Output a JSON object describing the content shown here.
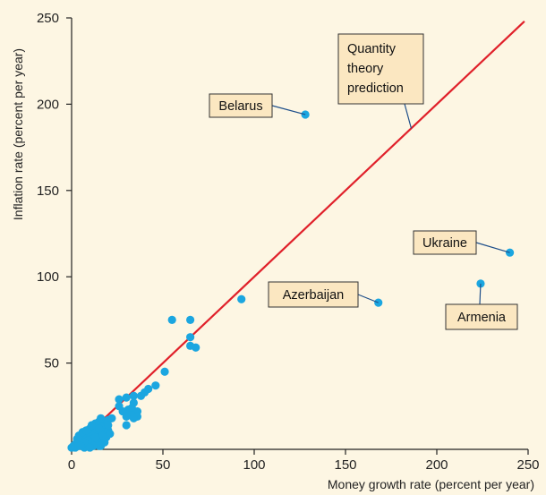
{
  "chart_data": {
    "type": "scatter",
    "title": "",
    "xlabel": "Money growth rate (percent per year)",
    "ylabel": "Inflation rate (percent per year)",
    "xlim": [
      0,
      250
    ],
    "ylim": [
      0,
      250
    ],
    "xticks": [
      0,
      50,
      100,
      150,
      200,
      250
    ],
    "yticks": [
      50,
      100,
      150,
      200,
      250
    ],
    "grid": false,
    "colors": {
      "background": "#fdf6e3",
      "points": "#1ba6e0",
      "line": "#e0202a",
      "annotation_fill": "#fbe7c1",
      "annotation_border": "#333333"
    },
    "line": {
      "label": "Quantity theory prediction",
      "label_lines": [
        "Quantity",
        "theory",
        "prediction"
      ],
      "x": [
        0,
        248
      ],
      "y": [
        0,
        248
      ]
    },
    "labeled_points": [
      {
        "label": "Belarus",
        "x": 128,
        "y": 194
      },
      {
        "label": "Ukraine",
        "x": 240,
        "y": 114
      },
      {
        "label": "Azerbaijan",
        "x": 168,
        "y": 85
      },
      {
        "label": "Armenia",
        "x": 224,
        "y": 96
      }
    ],
    "points": [
      [
        93,
        87
      ],
      [
        55,
        75
      ],
      [
        65,
        75
      ],
      [
        65,
        65
      ],
      [
        65,
        60
      ],
      [
        68,
        59
      ],
      [
        51,
        45
      ],
      [
        46,
        37
      ],
      [
        42,
        35
      ],
      [
        40,
        33
      ],
      [
        38,
        31
      ],
      [
        34,
        31
      ],
      [
        30,
        30
      ],
      [
        26,
        29
      ],
      [
        34,
        27
      ],
      [
        33,
        24
      ],
      [
        31,
        23
      ],
      [
        36,
        22
      ],
      [
        28,
        22
      ],
      [
        33,
        20
      ],
      [
        36,
        19
      ],
      [
        30,
        19
      ],
      [
        34,
        18
      ],
      [
        30,
        14
      ],
      [
        26,
        25
      ],
      [
        22,
        18
      ],
      [
        20,
        17
      ],
      [
        18,
        16
      ],
      [
        16,
        18
      ],
      [
        15,
        16
      ],
      [
        14,
        14
      ],
      [
        17,
        13
      ],
      [
        19,
        12
      ],
      [
        13,
        12
      ],
      [
        12,
        13
      ],
      [
        11,
        11
      ],
      [
        10,
        12
      ],
      [
        12,
        10
      ],
      [
        9,
        10
      ],
      [
        14,
        9
      ],
      [
        16,
        10
      ],
      [
        18,
        9
      ],
      [
        20,
        11
      ],
      [
        10,
        8
      ],
      [
        8,
        9
      ],
      [
        7,
        8
      ],
      [
        6,
        7
      ],
      [
        5,
        6
      ],
      [
        4,
        5
      ],
      [
        3,
        4
      ],
      [
        2,
        3
      ],
      [
        1,
        2
      ],
      [
        0,
        1
      ],
      [
        2,
        1
      ],
      [
        4,
        2
      ],
      [
        6,
        3
      ],
      [
        8,
        4
      ],
      [
        10,
        5
      ],
      [
        12,
        6
      ],
      [
        14,
        7
      ],
      [
        16,
        5
      ],
      [
        18,
        6
      ],
      [
        11,
        3
      ],
      [
        13,
        4
      ],
      [
        15,
        2
      ],
      [
        9,
        2
      ],
      [
        7,
        1
      ],
      [
        5,
        3
      ],
      [
        3,
        6
      ],
      [
        6,
        5
      ],
      [
        8,
        7
      ],
      [
        10,
        9
      ],
      [
        12,
        8
      ],
      [
        14,
        11
      ],
      [
        16,
        13
      ],
      [
        17,
        8
      ],
      [
        19,
        7
      ],
      [
        13,
        15
      ],
      [
        11,
        6
      ],
      [
        9,
        5
      ],
      [
        15,
        12
      ],
      [
        7,
        4
      ],
      [
        5,
        2
      ],
      [
        12,
        2
      ],
      [
        4,
        8
      ],
      [
        6,
        10
      ],
      [
        8,
        11
      ],
      [
        11,
        14
      ],
      [
        20,
        14
      ],
      [
        21,
        9
      ],
      [
        13,
        7
      ],
      [
        18,
        4
      ],
      [
        16,
        2
      ],
      [
        10,
        1
      ]
    ]
  }
}
